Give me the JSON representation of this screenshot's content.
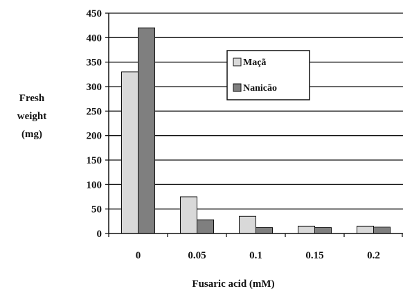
{
  "chart_data": {
    "type": "bar",
    "title": "",
    "xlabel": "Fusaric acid (mM)",
    "ylabel_lines": [
      "Fresh",
      "weight",
      "(mg)"
    ],
    "categories": [
      "0",
      "0.05",
      "0.1",
      "0.15",
      "0.2"
    ],
    "series": [
      {
        "name": "Maçã",
        "values": [
          330,
          75,
          35,
          15,
          15
        ],
        "color": "#d9d9d9"
      },
      {
        "name": "Nanicão",
        "values": [
          420,
          28,
          12,
          12,
          13
        ],
        "color": "#7f7f7f"
      }
    ],
    "ylim": [
      0,
      450
    ],
    "yticks": [
      0,
      50,
      100,
      150,
      200,
      250,
      300,
      350,
      400,
      450
    ],
    "grid": true,
    "legend_position": "upper-right-inside"
  }
}
